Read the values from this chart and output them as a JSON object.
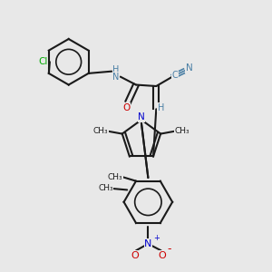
{
  "background_color": "#e8e8e8",
  "title": "",
  "atoms": {
    "Cl": {
      "color": "#00aa00",
      "label": "Cl"
    },
    "N": {
      "color": "#4a7fa5",
      "label": "N"
    },
    "H": {
      "color": "#4a7fa5",
      "label": "H"
    },
    "O": {
      "color": "#cc0000",
      "label": "O"
    },
    "C_cyan": {
      "color": "#4a7fa5",
      "label": "C"
    },
    "N_cyan": {
      "color": "#4a7fa5",
      "label": "N"
    },
    "N_blue": {
      "color": "#0000cc",
      "label": "N"
    },
    "O_red": {
      "color": "#cc0000",
      "label": "O"
    },
    "O_minus": {
      "color": "#cc0000",
      "label": "O"
    }
  },
  "bond_color": "#1a1a1a",
  "aromatic_color": "#1a1a1a"
}
